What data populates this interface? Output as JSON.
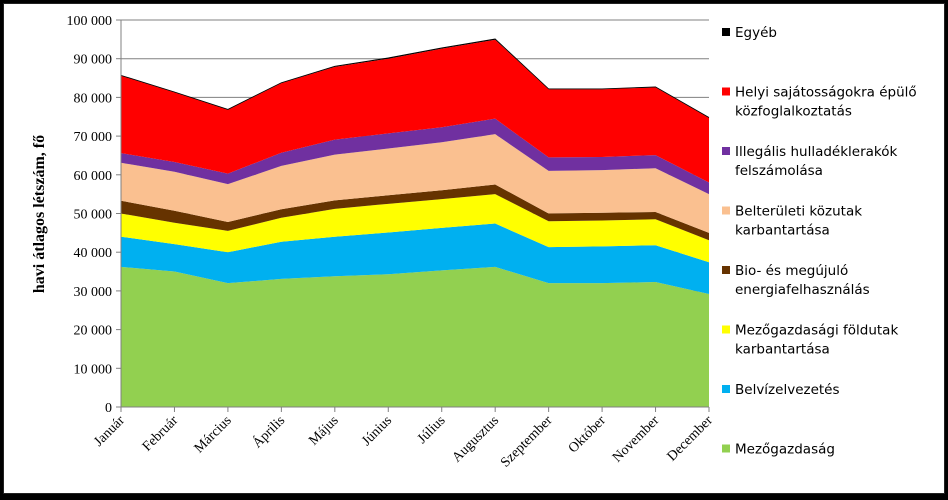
{
  "chart_data": {
    "type": "area",
    "stacked": true,
    "title": "",
    "xlabel": "",
    "ylabel": "havi átlagos létszám, fő",
    "ylim": [
      0,
      100000
    ],
    "yticks": [
      0,
      10000,
      20000,
      30000,
      40000,
      50000,
      60000,
      70000,
      80000,
      90000,
      100000
    ],
    "ytick_labels": [
      "0",
      "10 000",
      "20 000",
      "30 000",
      "40 000",
      "50 000",
      "60 000",
      "70 000",
      "80 000",
      "90 000",
      "100 000"
    ],
    "grid": true,
    "legend_position": "right",
    "categories": [
      "Január",
      "Február",
      "Március",
      "Április",
      "Május",
      "Június",
      "Július",
      "Augusztus",
      "Szeptember",
      "Október",
      "November",
      "December"
    ],
    "series": [
      {
        "name": "Mezőgazdaság",
        "color": "#92D050",
        "values": [
          36200,
          35000,
          32000,
          33100,
          33800,
          34300,
          35300,
          36200,
          32000,
          32000,
          32300,
          29200
        ]
      },
      {
        "name": "Belvízelvezetés",
        "color": "#00B0F0",
        "values": [
          7800,
          7100,
          8000,
          9600,
          10200,
          10800,
          11000,
          11200,
          9300,
          9500,
          9500,
          8200
        ]
      },
      {
        "name": "Mezőgazdasági földutak karbantartása",
        "color": "#FFFF00",
        "values": [
          6000,
          5500,
          5500,
          6200,
          7200,
          7400,
          7400,
          7600,
          6700,
          6700,
          6700,
          5700
        ]
      },
      {
        "name": "Bio- és megújuló energiafelhasználás",
        "color": "#663300",
        "values": [
          3300,
          3100,
          2300,
          2200,
          2200,
          2200,
          2300,
          2500,
          2000,
          2000,
          1900,
          1900
        ]
      },
      {
        "name": "Belterületi közutak karbantartása",
        "color": "#FAC090",
        "values": [
          9800,
          10100,
          9800,
          11200,
          11800,
          12100,
          12400,
          13000,
          11000,
          11000,
          11300,
          10000
        ]
      },
      {
        "name": "Illegális hulladéklerakók felszámolása",
        "color": "#7030A0",
        "values": [
          2500,
          2500,
          2700,
          3400,
          3900,
          3900,
          3900,
          4000,
          3500,
          3400,
          3400,
          3000
        ]
      },
      {
        "name": "Helyi sajátosságokra épülő közfoglalkoztatás",
        "color": "#FF0000",
        "values": [
          20000,
          18000,
          16500,
          18000,
          18800,
          19300,
          20300,
          20400,
          17600,
          17500,
          17500,
          16700
        ]
      },
      {
        "name": "Egyéb",
        "color": "#000000",
        "values": [
          100,
          100,
          100,
          100,
          150,
          200,
          200,
          200,
          100,
          100,
          100,
          100
        ]
      }
    ],
    "legend_order": [
      "Egyéb",
      "Helyi sajátosságokra épülő közfoglalkoztatás",
      "Illegális hulladéklerakók felszámolása",
      "Belterületi közutak karbantartása",
      "Bio- és megújuló energiafelhasználás",
      "Mezőgazdasági földutak karbantartása",
      "Belvízelvezetés",
      "Mezőgazdaság"
    ],
    "legend_lines": {
      "Egyéb": [
        "Egyéb"
      ],
      "Helyi sajátosságokra épülő közfoglalkoztatás": [
        "Helyi sajátosságokra épülő",
        "közfoglalkoztatás"
      ],
      "Illegális hulladéklerakók felszámolása": [
        "Illegális hulladéklerakók",
        "felszámolása"
      ],
      "Belterületi közutak karbantartása": [
        "Belterületi közutak",
        "karbantartása"
      ],
      "Bio- és megújuló energiafelhasználás": [
        "Bio- és megújuló",
        "energiafelhasználás"
      ],
      "Mezőgazdasági földutak karbantartása": [
        "Mezőgazdasági földutak",
        "karbantartása"
      ],
      "Belvízelvezetés": [
        "Belvízelvezetés"
      ],
      "Mezőgazdaság": [
        "Mezőgazdaság"
      ]
    }
  }
}
